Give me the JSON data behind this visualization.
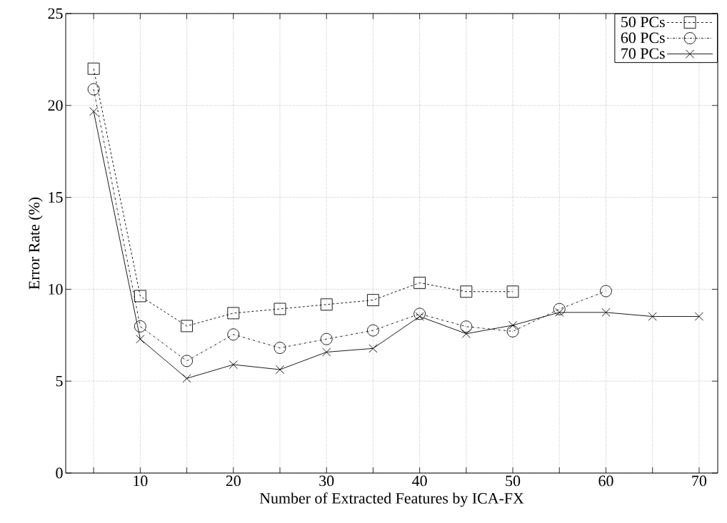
{
  "chart_data": {
    "type": "line",
    "xlabel": "Number of Extracted Features by ICA-FX",
    "ylabel": "Error Rate (%)",
    "x": [
      5,
      10,
      15,
      20,
      25,
      30,
      35,
      40,
      45,
      50,
      55,
      60,
      65,
      70
    ],
    "series": [
      {
        "name": "50 PCs",
        "color": "#000000",
        "marker": "square",
        "line_style": "dashed",
        "values": [
          22.0,
          9.63,
          8.0,
          8.7,
          8.93,
          9.17,
          9.41,
          10.35,
          9.87,
          9.87,
          null,
          null,
          null,
          null
        ]
      },
      {
        "name": "60 PCs",
        "color": "#000000",
        "marker": "circle",
        "line_style": "dashdot",
        "values": [
          20.88,
          7.98,
          6.1,
          7.54,
          6.81,
          7.29,
          7.76,
          8.66,
          7.97,
          7.71,
          8.92,
          9.9,
          null,
          null
        ]
      },
      {
        "name": "70 PCs",
        "color": "#000000",
        "marker": "cross",
        "line_style": "solid",
        "values": [
          19.67,
          7.29,
          5.15,
          5.9,
          5.63,
          6.58,
          6.78,
          8.52,
          7.58,
          8.04,
          8.74,
          8.74,
          8.52,
          8.52
        ]
      }
    ],
    "xlim": [
      2,
      72
    ],
    "ylim": [
      0,
      25
    ],
    "xticks": [
      {
        "value": 5,
        "label": null
      },
      10,
      {
        "value": 15,
        "label": null
      },
      20,
      {
        "value": 25,
        "label": null
      },
      30,
      {
        "value": 35,
        "label": null
      },
      40,
      {
        "value": 45,
        "label": null
      },
      50,
      {
        "value": 55,
        "label": null
      },
      60,
      {
        "value": 65,
        "label": null
      },
      70
    ],
    "yticks": [
      0,
      5,
      10,
      15,
      20,
      25
    ],
    "grid": true,
    "legend": "top right"
  }
}
